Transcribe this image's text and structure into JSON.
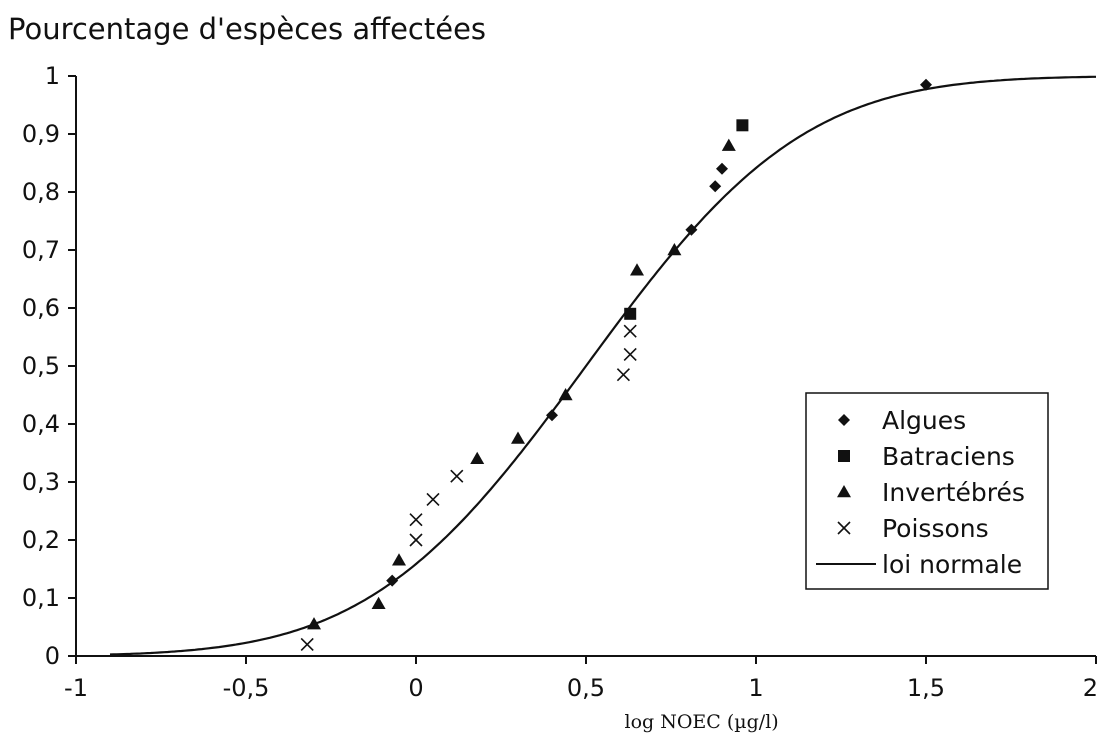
{
  "chart_data": {
    "type": "scatter",
    "title": "Pourcentage d'espèces affectées",
    "xlabel": "log NOEC (µg/l)",
    "ylabel": "",
    "xlim": [
      -1,
      2
    ],
    "ylim": [
      0,
      1
    ],
    "x_ticks": [
      -1,
      -0.5,
      0,
      0.5,
      1,
      1.5,
      2
    ],
    "x_tick_labels": [
      "-1",
      "-0,5",
      "0",
      "0,5",
      "1",
      "1,5",
      "2"
    ],
    "y_ticks": [
      0,
      0.1,
      0.2,
      0.3,
      0.4,
      0.5,
      0.6,
      0.7,
      0.8,
      0.9,
      1
    ],
    "y_tick_labels": [
      "0",
      "0,1",
      "0,2",
      "0,3",
      "0,4",
      "0,5",
      "0,6",
      "0,7",
      "0,8",
      "0,9",
      "1"
    ],
    "grid": false,
    "legend_position": "bottom-right",
    "series": [
      {
        "name": "Algues",
        "marker": "diamond",
        "x": [
          -0.07,
          0.4,
          0.81,
          0.88,
          0.9,
          1.5
        ],
        "y": [
          0.13,
          0.415,
          0.735,
          0.81,
          0.84,
          0.985
        ]
      },
      {
        "name": "Batraciens",
        "marker": "square",
        "x": [
          0.63,
          0.96
        ],
        "y": [
          0.59,
          0.915
        ]
      },
      {
        "name": "Invertébrés",
        "marker": "triangle",
        "x": [
          -0.3,
          -0.11,
          -0.05,
          0.18,
          0.3,
          0.44,
          0.65,
          0.76,
          0.92
        ],
        "y": [
          0.055,
          0.09,
          0.165,
          0.34,
          0.375,
          0.45,
          0.665,
          0.7,
          0.88
        ]
      },
      {
        "name": "Poissons",
        "marker": "cross",
        "x": [
          -0.32,
          0.0,
          0.0,
          0.05,
          0.12,
          0.61,
          0.63,
          0.63
        ],
        "y": [
          0.02,
          0.2,
          0.235,
          0.27,
          0.31,
          0.485,
          0.52,
          0.56
        ]
      },
      {
        "name": "loi normale",
        "type": "line",
        "mean": 0.5,
        "sd": 0.5
      }
    ]
  }
}
